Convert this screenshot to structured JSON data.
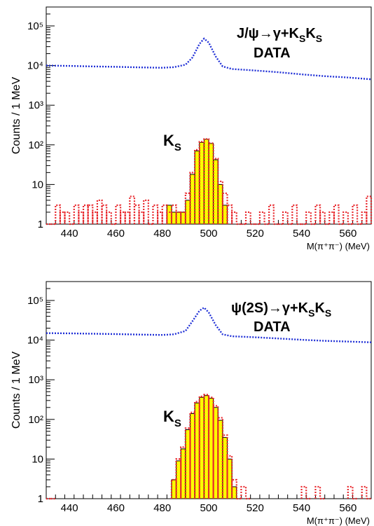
{
  "chart_data": [
    {
      "type": "line",
      "title": "",
      "annotation_line1": "J/ψ→γ+K",
      "annotation_sub1": "S",
      "annotation_mid": "K",
      "annotation_sub2": "S",
      "annotation_line2": "DATA",
      "peak_label": "K",
      "peak_label_sub": "S",
      "xlabel": "M(π⁺π⁻) (MeV)",
      "ylabel": "Counts / 1 MeV",
      "xlim": [
        430,
        570
      ],
      "ylim": [
        1,
        300000
      ],
      "yscale": "log",
      "x_ticks": [
        "440",
        "460",
        "480",
        "500",
        "520",
        "540",
        "560"
      ],
      "y_ticks": [
        "1",
        "10",
        "10²",
        "10³",
        "10⁴",
        "10⁵"
      ],
      "series": [
        {
          "style": "dotted",
          "color": "#1f2fd6",
          "x": [
            430,
            440,
            450,
            460,
            470,
            480,
            485,
            490,
            493,
            496,
            498,
            500,
            503,
            506,
            510,
            520,
            530,
            540,
            550,
            560,
            570
          ],
          "y": [
            10000,
            9800,
            9500,
            9300,
            9000,
            8800,
            9100,
            10500,
            16000,
            35000,
            48000,
            38000,
            17000,
            9500,
            8200,
            7500,
            6800,
            6000,
            5400,
            5000,
            4500
          ]
        },
        {
          "style": "dotted-histogram",
          "color": "#e8282d",
          "x": [
            430,
            432,
            434,
            436,
            438,
            440,
            442,
            444,
            446,
            448,
            450,
            452,
            454,
            456,
            458,
            460,
            462,
            464,
            466,
            468,
            470,
            472,
            474,
            476,
            478,
            480,
            482,
            484,
            486,
            488,
            490,
            492,
            494,
            496,
            498,
            500,
            502,
            504,
            506,
            508,
            510,
            512,
            514,
            516,
            518,
            520,
            522,
            524,
            526,
            528,
            530,
            532,
            534,
            536,
            538,
            540,
            542,
            544,
            546,
            548,
            550,
            552,
            554,
            556,
            558,
            560,
            562,
            564,
            566,
            568
          ],
          "y": [
            1,
            1,
            3,
            2,
            2,
            1,
            3,
            2,
            3,
            3,
            2,
            4,
            3,
            2,
            1,
            3,
            2,
            2,
            5,
            3,
            2,
            4,
            1,
            3,
            2,
            3,
            2,
            3,
            2,
            2,
            6,
            20,
            75,
            120,
            140,
            110,
            45,
            12,
            6,
            3,
            2,
            1,
            1,
            2,
            1,
            1,
            2,
            1,
            3,
            1,
            1,
            2,
            1,
            3,
            1,
            1,
            2,
            1,
            3,
            2,
            1,
            2,
            3,
            1,
            2,
            1,
            3,
            1,
            2,
            5
          ]
        },
        {
          "style": "filled-histogram",
          "color": "#ffff00",
          "x": [
            482,
            484,
            486,
            488,
            490,
            492,
            494,
            496,
            498,
            500,
            502,
            504,
            506,
            508
          ],
          "y": [
            3,
            2,
            2,
            2,
            4,
            18,
            70,
            115,
            138,
            108,
            42,
            10,
            3,
            1
          ]
        }
      ]
    },
    {
      "type": "line",
      "title": "",
      "annotation_line1": "ψ(2S)→γ+K",
      "annotation_sub1": "S",
      "annotation_mid": "K",
      "annotation_sub2": "S",
      "annotation_line2": "DATA",
      "peak_label": "K",
      "peak_label_sub": "S",
      "xlabel": "M(π⁺π⁻) (MeV)",
      "ylabel": "Counts / 1 MeV",
      "xlim": [
        430,
        570
      ],
      "ylim": [
        1,
        300000
      ],
      "yscale": "log",
      "x_ticks": [
        "440",
        "460",
        "480",
        "500",
        "520",
        "540",
        "560"
      ],
      "y_ticks": [
        "1",
        "10",
        "10²",
        "10³",
        "10⁴",
        "10⁵"
      ],
      "series": [
        {
          "style": "dotted",
          "color": "#1f2fd6",
          "x": [
            430,
            440,
            450,
            460,
            470,
            480,
            485,
            490,
            493,
            496,
            498,
            500,
            503,
            506,
            510,
            520,
            530,
            540,
            550,
            560,
            570
          ],
          "y": [
            15000,
            14800,
            14500,
            14200,
            13800,
            13500,
            14000,
            17000,
            30000,
            55000,
            66000,
            50000,
            24000,
            14000,
            12500,
            11800,
            11000,
            10200,
            9600,
            9200,
            8800
          ]
        },
        {
          "style": "dotted-histogram",
          "color": "#e8282d",
          "x": [
            430,
            432,
            484,
            486,
            488,
            490,
            492,
            494,
            496,
            498,
            500,
            502,
            504,
            506,
            508,
            510,
            512,
            514,
            516,
            540,
            542,
            546,
            548,
            560,
            562,
            566,
            568
          ],
          "y": [
            1,
            1,
            3,
            10,
            20,
            60,
            150,
            280,
            380,
            420,
            360,
            220,
            110,
            40,
            12,
            3,
            1,
            2,
            1,
            2,
            1,
            2,
            1,
            2,
            1,
            2,
            1
          ]
        },
        {
          "style": "filled-histogram",
          "color": "#ffff00",
          "x": [
            484,
            486,
            488,
            490,
            492,
            494,
            496,
            498,
            500,
            502,
            504,
            506,
            508,
            510
          ],
          "y": [
            3,
            9,
            18,
            55,
            140,
            260,
            360,
            400,
            340,
            200,
            95,
            35,
            10,
            2
          ]
        }
      ]
    }
  ]
}
